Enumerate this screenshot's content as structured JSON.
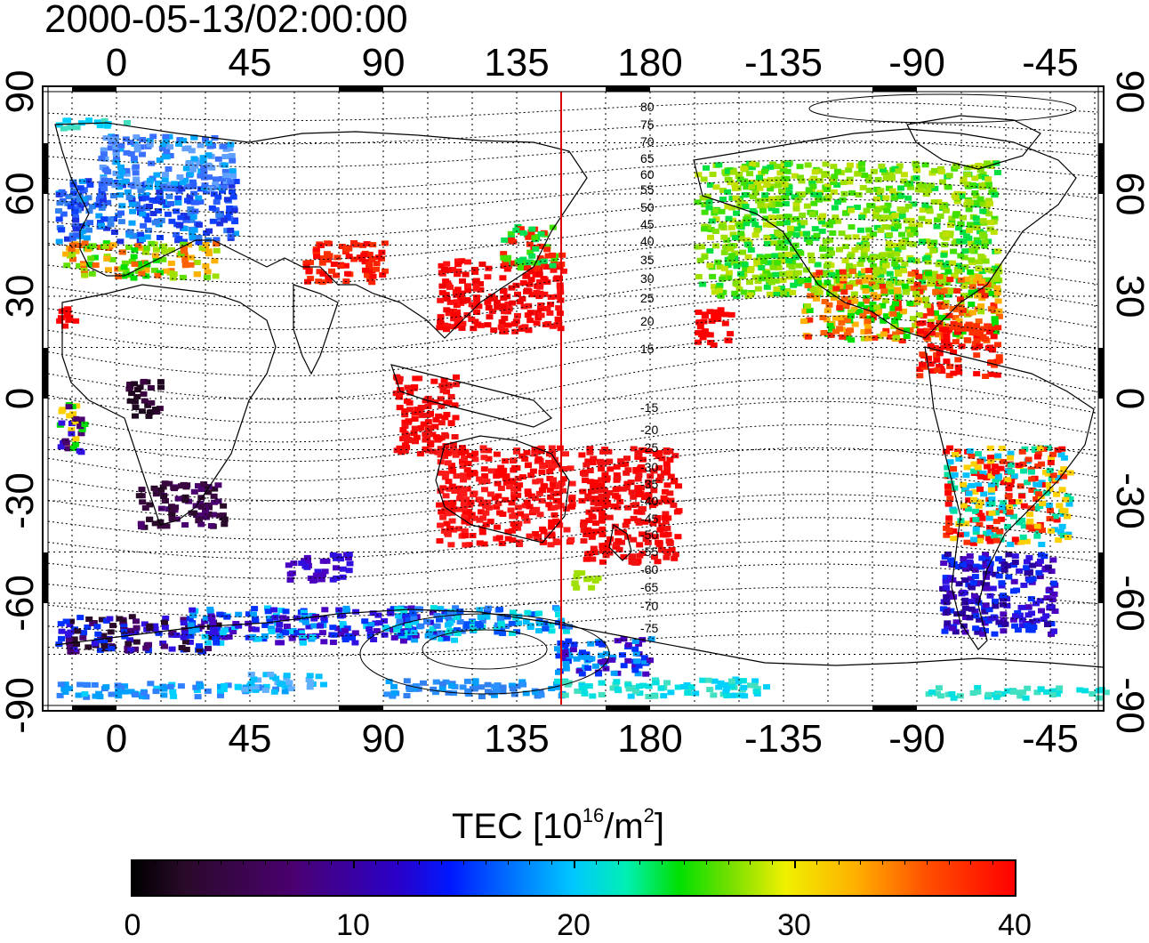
{
  "title": "2000-05-13/02:00:00",
  "map": {
    "x_ticks": [
      "0",
      "45",
      "90",
      "135",
      "180",
      "-135",
      "-90",
      "-45"
    ],
    "y_ticks": [
      "90",
      "60",
      "30",
      "0",
      "-30",
      "-60",
      "-90"
    ],
    "contour_labels": [
      "80",
      "75",
      "70",
      "65",
      "60",
      "55",
      "50",
      "45",
      "40",
      "35",
      "30",
      "25",
      "20",
      "15",
      "-15",
      "-20",
      "-25",
      "-30",
      "-35",
      "-40",
      "-45",
      "-50",
      "-55",
      "-60",
      "-65",
      "-70",
      "-75"
    ],
    "meridian_line": {
      "longitude": 150,
      "color": "#e00000"
    }
  },
  "colorbar": {
    "label_main": "TEC  [10",
    "label_exp": "16",
    "label_unit": "/m",
    "label_unit_exp": "2",
    "label_close": "]",
    "ticks": [
      "0",
      "10",
      "20",
      "30",
      "40"
    ],
    "min": 0,
    "max": 40,
    "colors": [
      "#000000",
      "#4a006e",
      "#0018ff",
      "#00c8ff",
      "#00e000",
      "#f0f000",
      "#ff0000"
    ]
  }
}
